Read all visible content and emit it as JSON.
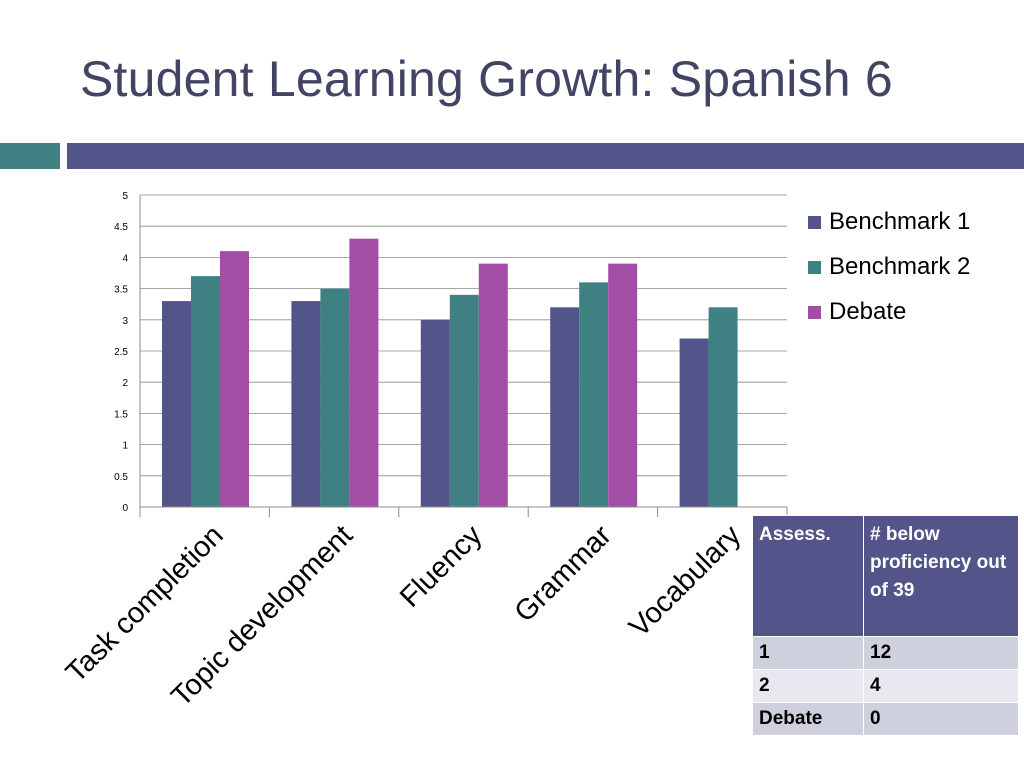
{
  "slide": {
    "title": "Student Learning Growth: Spanish 6"
  },
  "colors": {
    "title": "#424464",
    "accent_teal": "#3f8182",
    "accent_slate": "#53548a"
  },
  "chart_data": {
    "type": "bar",
    "title": "",
    "xlabel": "",
    "ylabel": "",
    "categories": [
      "Task completion",
      "Topic development",
      "Fluency",
      "Grammar",
      "Vocabulary"
    ],
    "series": [
      {
        "name": "Benchmark 1",
        "color": "#53548a",
        "values": [
          3.3,
          3.3,
          3.0,
          3.2,
          2.7
        ]
      },
      {
        "name": "Benchmark 2",
        "color": "#3f8182",
        "values": [
          3.7,
          3.5,
          3.4,
          3.6,
          3.2
        ]
      },
      {
        "name": "Debate",
        "color": "#a24ea6",
        "values": [
          4.1,
          4.3,
          3.9,
          3.9,
          null
        ]
      }
    ],
    "ylim": [
      0,
      5
    ],
    "yticks": [
      0,
      0.5,
      1,
      1.5,
      2,
      2.5,
      3,
      3.5,
      4,
      4.5,
      5
    ],
    "ytick_labels": [
      "0",
      "0.5",
      "1",
      "1.5",
      "2",
      "2.5",
      "3",
      "3.5",
      "4",
      "4.5",
      "5"
    ],
    "grid": true,
    "legend": "right"
  },
  "summary_table": {
    "headers": [
      "Assess.",
      "# below proficiency out of 39"
    ],
    "rows": [
      [
        "1",
        "12"
      ],
      [
        "2",
        "4"
      ],
      [
        "Debate",
        "0"
      ]
    ]
  }
}
